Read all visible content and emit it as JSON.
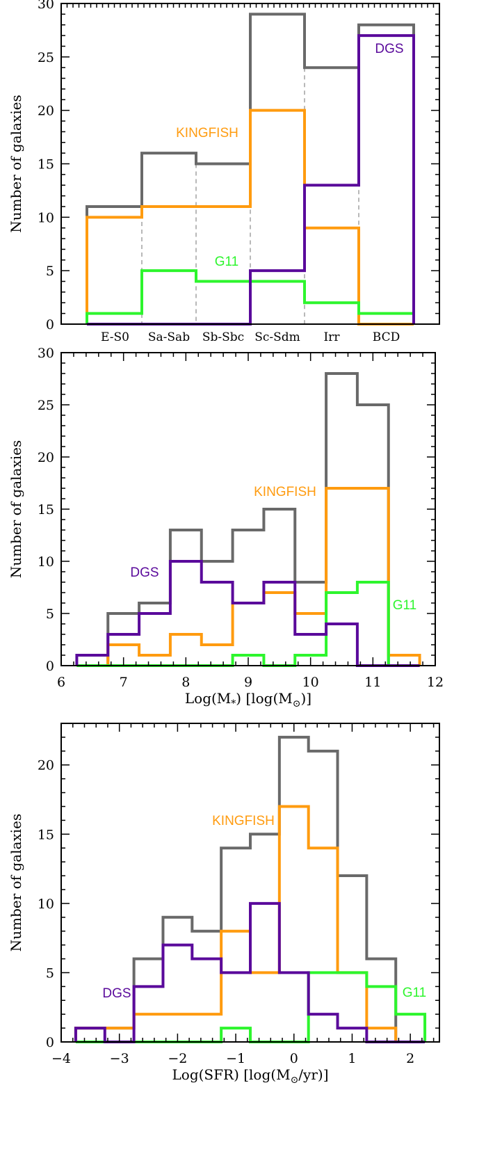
{
  "colors": {
    "total": "#696969",
    "kingfish": "#FF9B0F",
    "dgs": "#5A0A9B",
    "g11": "#2DF52D",
    "grid": "#A0A0A0"
  },
  "chart_data": [
    {
      "type": "histogram",
      "ylabel": "Number of galaxies",
      "xlabel": "",
      "categories": [
        "E-S0",
        "Sa-Sab",
        "Sb-Sbc",
        "Sc-Sdm",
        "Irr",
        "BCD"
      ],
      "ylim": [
        0,
        30
      ],
      "yticks": [
        "0",
        "5",
        "10",
        "15",
        "20",
        "25",
        "30"
      ],
      "series": [
        {
          "name": "",
          "color_key": "total",
          "values": [
            11,
            16,
            15,
            29,
            24,
            28
          ]
        },
        {
          "name": "KINGFISH",
          "color_key": "kingfish",
          "values": [
            10,
            11,
            11,
            20,
            9,
            0
          ]
        },
        {
          "name": "DGS",
          "color_key": "dgs",
          "values": [
            0,
            0,
            0,
            5,
            13,
            27
          ]
        },
        {
          "name": "G11",
          "color_key": "g11",
          "values": [
            1,
            5,
            4,
            4,
            2,
            1
          ]
        }
      ]
    },
    {
      "type": "histogram",
      "ylabel": "Number of galaxies",
      "xlabel": "Log(M",
      "xlabel_sub": "*",
      "xlabel_mid": ") [log(M",
      "xlabel_sub2": "⊙",
      "xlabel_end": ")]",
      "xlim": [
        6,
        12
      ],
      "ylim": [
        0,
        30
      ],
      "xticks": [
        "6",
        "7",
        "8",
        "9",
        "10",
        "11",
        "12"
      ],
      "yticks": [
        "0",
        "5",
        "10",
        "15",
        "20",
        "25",
        "30"
      ],
      "bin_edges": [
        6.25,
        6.75,
        7.25,
        7.75,
        8.25,
        8.75,
        9.25,
        9.75,
        10.25,
        10.75,
        11.25,
        11.75
      ],
      "series": [
        {
          "name": "",
          "color_key": "total",
          "values": [
            0,
            5,
            6,
            13,
            10,
            13,
            15,
            8,
            28,
            25,
            0
          ]
        },
        {
          "name": "KINGFISH",
          "color_key": "kingfish",
          "values": [
            0,
            2,
            1,
            3,
            2,
            6,
            7,
            5,
            17,
            17,
            1
          ]
        },
        {
          "name": "DGS",
          "color_key": "dgs",
          "values": [
            1,
            3,
            5,
            10,
            8,
            6,
            8,
            3,
            4,
            0,
            0
          ]
        },
        {
          "name": "G11",
          "color_key": "g11",
          "values": [
            0,
            0,
            0,
            0,
            0,
            1,
            0,
            1,
            7,
            8,
            0
          ]
        }
      ]
    },
    {
      "type": "histogram",
      "ylabel": "Number of galaxies",
      "xlabel": "Log(SFR) [log(M",
      "xlabel_sub": "⊙",
      "xlabel_end": "/yr)]",
      "xlim": [
        -4,
        2.5
      ],
      "ylim": [
        0,
        23
      ],
      "xticks": [
        "−4",
        "−3",
        "−2",
        "−1",
        "0",
        "1",
        "2"
      ],
      "yticks": [
        "0",
        "5",
        "10",
        "15",
        "20"
      ],
      "bin_edges": [
        -3.75,
        -3.25,
        -2.75,
        -2.25,
        -1.75,
        -1.25,
        -0.75,
        -0.25,
        0.25,
        0.75,
        1.25,
        1.75,
        2.25
      ],
      "series": [
        {
          "name": "",
          "color_key": "total",
          "values": [
            1,
            1,
            6,
            9,
            8,
            14,
            15,
            22,
            21,
            12,
            6,
            0
          ]
        },
        {
          "name": "KINGFISH",
          "color_key": "kingfish",
          "values": [
            1,
            1,
            2,
            2,
            2,
            8,
            5,
            17,
            14,
            5,
            1,
            0
          ]
        },
        {
          "name": "DGS",
          "color_key": "dgs",
          "values": [
            1,
            0,
            4,
            7,
            6,
            5,
            10,
            5,
            2,
            1,
            0,
            0
          ]
        },
        {
          "name": "G11",
          "color_key": "g11",
          "values": [
            0,
            0,
            0,
            0,
            0,
            1,
            0,
            0,
            5,
            5,
            4,
            2
          ]
        }
      ]
    }
  ]
}
